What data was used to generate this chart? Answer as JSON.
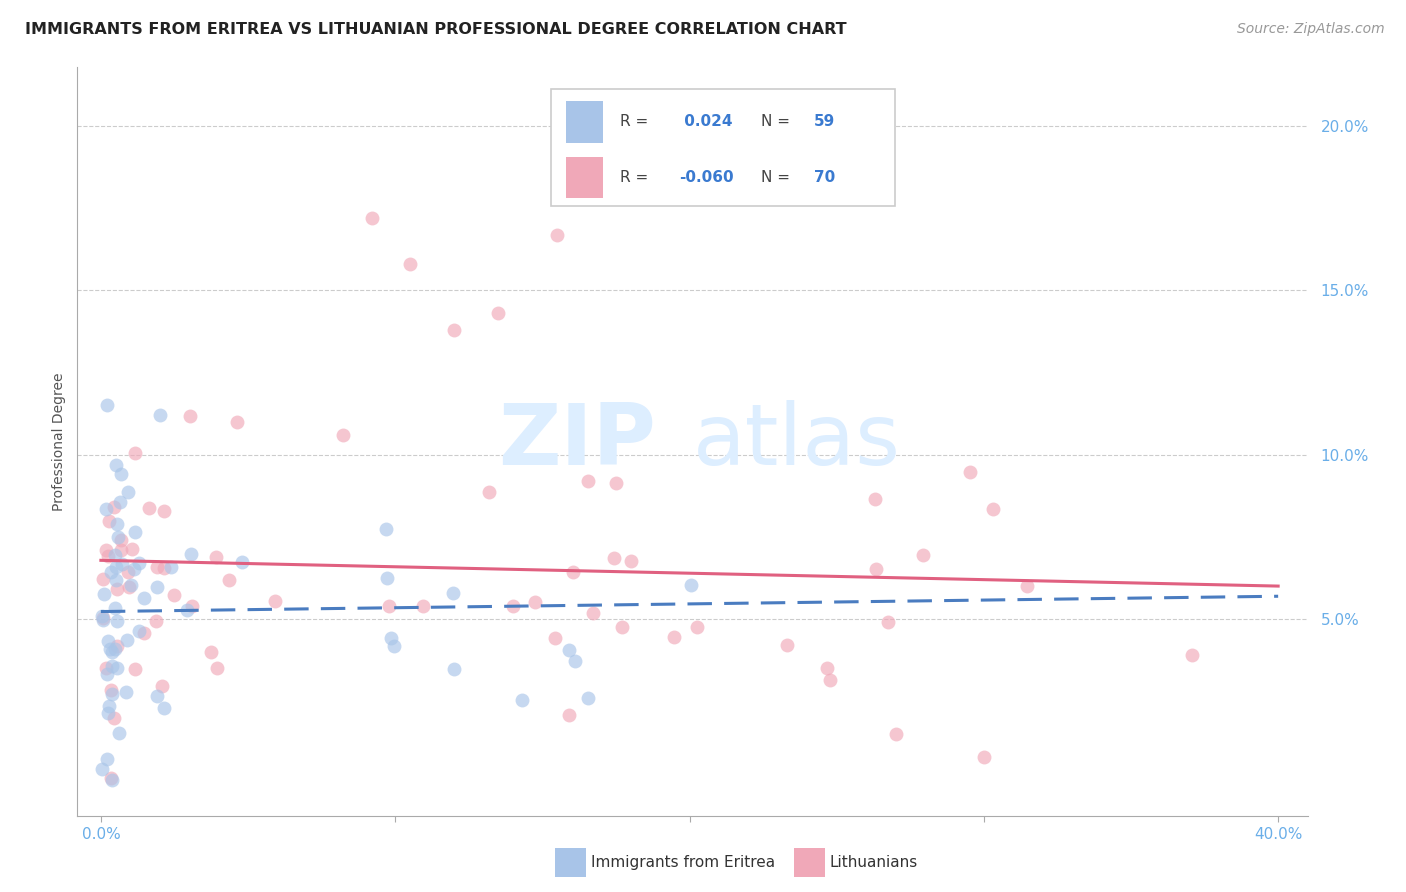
{
  "title": "IMMIGRANTS FROM ERITREA VS LITHUANIAN PROFESSIONAL DEGREE CORRELATION CHART",
  "source": "Source: ZipAtlas.com",
  "ylabel": "Professional Degree",
  "color_eritrea": "#a8c4e8",
  "color_lithuanian": "#f0a8b8",
  "color_trendline_eritrea": "#4a7cc0",
  "color_trendline_lithuanian": "#e06080",
  "color_axis_labels": "#6aaee8",
  "background_color": "#ffffff",
  "grid_color": "#cccccc",
  "watermark_zip": "ZIP",
  "watermark_atlas": "atlas",
  "watermark_color": "#ddeeff",
  "legend_eritrea_R": " 0.024",
  "legend_eritrea_N": "59",
  "legend_lithuanian_R": "-0.060",
  "legend_lithuanian_N": "70",
  "title_fontsize": 11.5,
  "axis_label_fontsize": 10,
  "tick_fontsize": 11,
  "source_fontsize": 10
}
